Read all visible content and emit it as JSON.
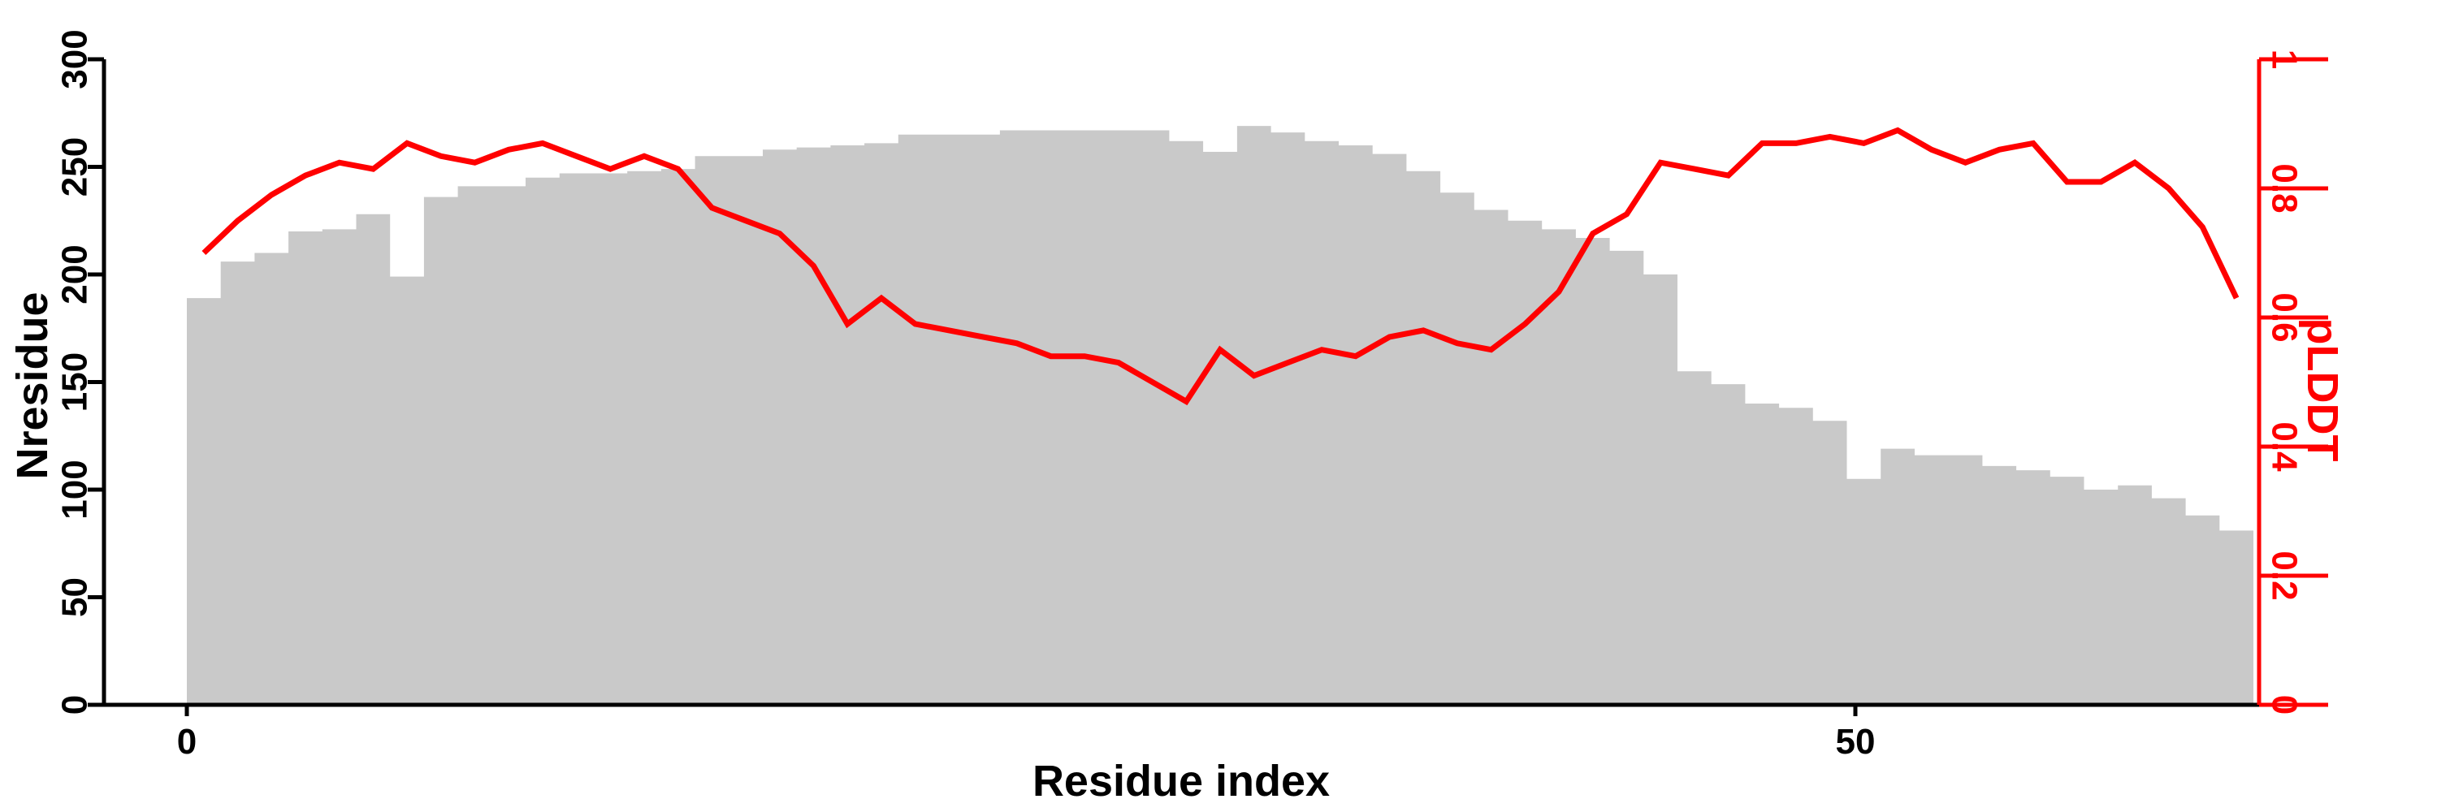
{
  "chart_data": {
    "type": "bar+line",
    "title": "",
    "xlabel": "Residue index",
    "ylabel_left": "Nresidue",
    "ylabel_right": "pLDDT",
    "bar_series_name": "Nresidue",
    "line_series_name": "pLDDT",
    "x_tick_labels": [
      "0",
      "50"
    ],
    "x_tick_values": [
      0,
      50
    ],
    "left_tick_labels": [
      "0",
      "50",
      "100",
      "150",
      "200",
      "250",
      "300"
    ],
    "left_tick_values": [
      0,
      50,
      100,
      150,
      200,
      250,
      300
    ],
    "right_tick_labels": [
      "0",
      "0.2",
      "0.4",
      "0.6",
      "0.8",
      "1"
    ],
    "right_tick_values": [
      0,
      0.2,
      0.4,
      0.6,
      0.8,
      1
    ],
    "ylim_left": [
      0,
      300
    ],
    "ylim_right": [
      0,
      1
    ],
    "x_start_index": 0,
    "grid": "off",
    "bar_color": "#c9c9c9",
    "line_color": "#ff0000",
    "axis_color": "#000000",
    "bar_values": [
      189,
      206,
      210,
      220,
      221,
      228,
      199,
      236,
      241,
      241,
      245,
      247,
      247,
      248,
      249,
      255,
      255,
      258,
      259,
      260,
      261,
      265,
      265,
      265,
      267,
      267,
      267,
      267,
      267,
      262,
      257,
      269,
      266,
      262,
      260,
      256,
      248,
      238,
      230,
      225,
      221,
      217,
      211,
      200,
      155,
      149,
      140,
      138,
      132,
      105,
      119,
      116,
      116,
      111,
      109,
      106,
      100,
      102,
      96,
      88,
      81
    ],
    "line_values": [
      0.7,
      0.75,
      0.79,
      0.82,
      0.84,
      0.83,
      0.87,
      0.85,
      0.84,
      0.86,
      0.87,
      0.85,
      0.83,
      0.85,
      0.83,
      0.77,
      0.75,
      0.73,
      0.68,
      0.59,
      0.63,
      0.59,
      0.58,
      0.57,
      0.56,
      0.54,
      0.54,
      0.53,
      0.5,
      0.47,
      0.55,
      0.51,
      0.53,
      0.55,
      0.54,
      0.57,
      0.58,
      0.56,
      0.55,
      0.59,
      0.64,
      0.73,
      0.76,
      0.84,
      0.83,
      0.82,
      0.87,
      0.87,
      0.88,
      0.87,
      0.89,
      0.86,
      0.84,
      0.86,
      0.87,
      0.81,
      0.81,
      0.84,
      0.8,
      0.74,
      0.63
    ]
  }
}
